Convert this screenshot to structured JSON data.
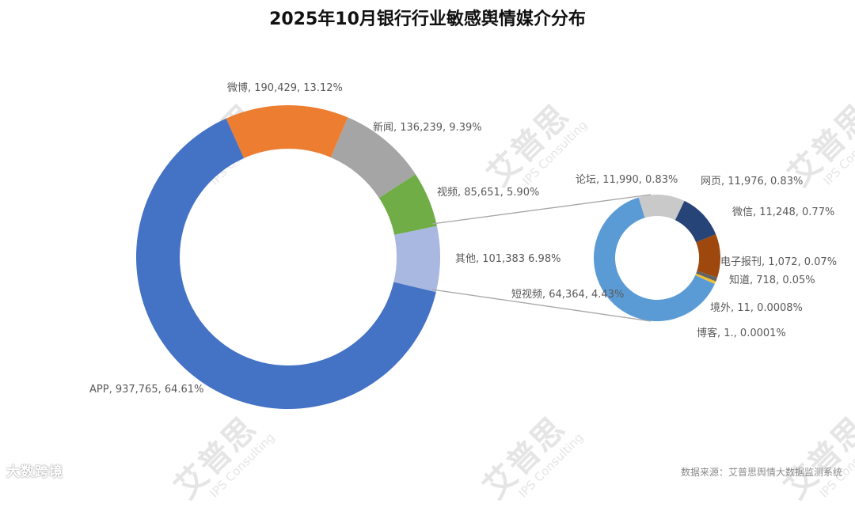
{
  "title": "2025年10月银行行业敏感舆情媒介分布",
  "source": "数据来源：艾普思舆情大数据监测系统",
  "brand_watermark": "大数跨境",
  "watermark": {
    "cn": "艾普思",
    "en": "IPS Consulting"
  },
  "chart_data": [
    {
      "type": "pie",
      "subtype": "donut",
      "title": "2025年10月银行行业敏感舆情媒介分布",
      "categories": [
        "微博",
        "新闻",
        "视频",
        "其他",
        "APP"
      ],
      "values": [
        190429,
        136239,
        85651,
        101383,
        937765
      ],
      "percentages": [
        13.12,
        9.39,
        5.9,
        6.98,
        64.61
      ],
      "colors": [
        "#ED7D31",
        "#A5A5A5",
        "#70AD47",
        "#A9B8E0",
        "#4472C4"
      ],
      "labels": [
        "微博, 190,429, 13.12%",
        "新闻, 136,239, 9.39%",
        "视频, 85,651, 5.90%",
        "其他, 101,383 6.98%",
        "APP, 937,765, 64.61%"
      ]
    },
    {
      "type": "pie",
      "subtype": "donut",
      "title": "其他 breakdown",
      "categories": [
        "论坛",
        "网页",
        "微信",
        "电子报刊",
        "知道",
        "境外",
        "博客",
        "短视频"
      ],
      "values": [
        11990,
        11976,
        11248,
        1072,
        718,
        11,
        1,
        64364
      ],
      "percentages": [
        0.83,
        0.83,
        0.77,
        0.07,
        0.05,
        0.0008,
        0.0001,
        4.43
      ],
      "colors": [
        "#C9C9C9",
        "#264478",
        "#9E480E",
        "#636363",
        "#F2C12E",
        "#5B9BD5",
        "#5B9BD5",
        "#5B9BD5"
      ],
      "labels": [
        "论坛, 11,990, 0.83%",
        "网页, 11,976, 0.83%",
        "微信, 11,248, 0.77%",
        "电子报刊, 1,072, 0.07%",
        "知道, 718, 0.05%",
        "境外, 11, 0.0008%",
        "博客, 1., 0.0001%",
        "短视频, 64,364, 4.43%"
      ]
    }
  ]
}
